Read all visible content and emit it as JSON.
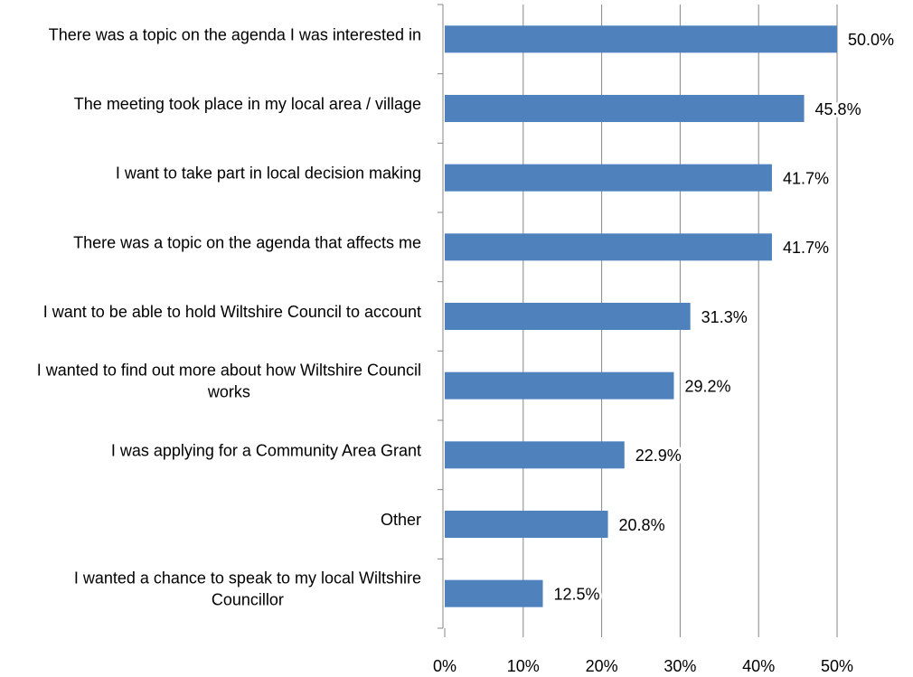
{
  "chart_data": {
    "type": "bar",
    "orientation": "horizontal",
    "categories": [
      "There was a topic on the agenda I was interested in",
      "The meeting took place in my local area / village",
      "I want to take part in local decision making",
      "There was a topic on the agenda that affects me",
      "I want to be able to hold Wiltshire Council to account",
      "I wanted to find out more about how Wiltshire Council works",
      "I was applying for a Community Area Grant",
      "Other",
      "I wanted a chance to speak to my local Wiltshire Councillor"
    ],
    "values": [
      50.0,
      45.8,
      41.7,
      41.7,
      31.3,
      29.2,
      22.9,
      20.8,
      12.5
    ],
    "value_labels": [
      "50.0%",
      "45.8%",
      "41.7%",
      "41.7%",
      "31.3%",
      "29.2%",
      "22.9%",
      "20.8%",
      "12.5%"
    ],
    "color": "#4f81bd",
    "xlim": [
      0,
      50
    ],
    "xticks": [
      {
        "value": 0,
        "label": "0%"
      },
      {
        "value": 10,
        "label": "10%"
      },
      {
        "value": 20,
        "label": "20%"
      },
      {
        "value": 30,
        "label": "30%"
      },
      {
        "value": 40,
        "label": "40%"
      },
      {
        "value": 50,
        "label": "50%"
      }
    ],
    "grid": true
  }
}
